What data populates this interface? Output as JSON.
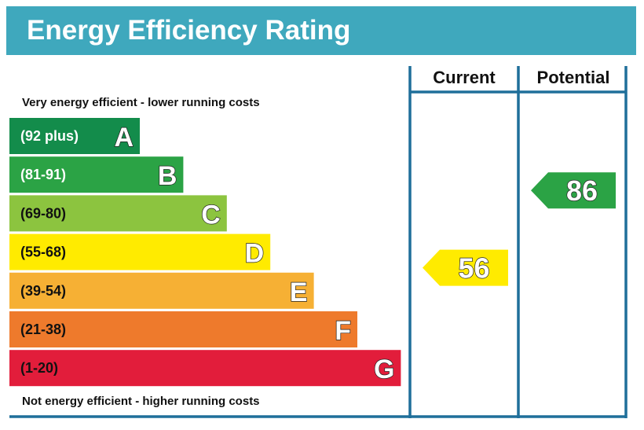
{
  "chart_data": {
    "type": "bar",
    "title": "Energy Efficiency Rating",
    "columns": [
      "Current",
      "Potential"
    ],
    "top_note": "Very energy efficient - lower running costs",
    "bottom_note": "Not energy efficient - higher running costs",
    "bands": [
      {
        "letter": "A",
        "range": "(92 plus)",
        "color": "#138c4b",
        "text_color": "#ffffff"
      },
      {
        "letter": "B",
        "range": "(81-91)",
        "color": "#2ba345",
        "text_color": "#ffffff"
      },
      {
        "letter": "C",
        "range": "(69-80)",
        "color": "#8cc43f",
        "text_color": "#111111"
      },
      {
        "letter": "D",
        "range": "(55-68)",
        "color": "#ffeb00",
        "text_color": "#111111"
      },
      {
        "letter": "E",
        "range": "(39-54)",
        "color": "#f6b034",
        "text_color": "#111111"
      },
      {
        "letter": "F",
        "range": "(21-38)",
        "color": "#ee7a2c",
        "text_color": "#111111"
      },
      {
        "letter": "G",
        "range": "(1-20)",
        "color": "#e21d3b",
        "text_color": "#111111"
      }
    ],
    "current": {
      "value": "56",
      "band": "D"
    },
    "potential": {
      "value": "86",
      "band": "B"
    },
    "header_color": "#3fa8bd",
    "line_color": "#1f6f9a"
  }
}
